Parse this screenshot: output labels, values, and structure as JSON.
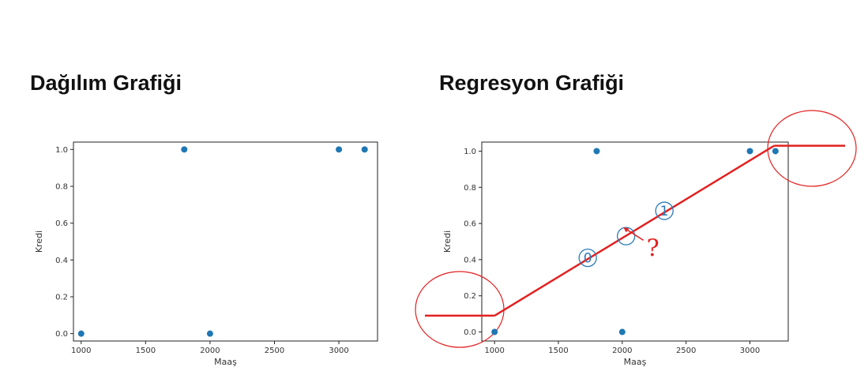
{
  "chart_data": [
    {
      "type": "scatter",
      "title": "Dağılım Grafiği",
      "xlabel": "Maaş",
      "ylabel": "Kredi",
      "xlim": [
        940,
        3300
      ],
      "ylim": [
        -0.04,
        1.04
      ],
      "xticks": [
        "1000",
        "1500",
        "2000",
        "2500",
        "3000"
      ],
      "yticks": [
        "0.0",
        "0.2",
        "0.4",
        "0.6",
        "0.8",
        "1.0"
      ],
      "point_color": "#1f77b4",
      "points": [
        {
          "x": 1000,
          "y": 0
        },
        {
          "x": 1800,
          "y": 1
        },
        {
          "x": 2000,
          "y": 0
        },
        {
          "x": 3000,
          "y": 1
        },
        {
          "x": 3200,
          "y": 1
        }
      ]
    },
    {
      "type": "scatter",
      "title": "Regresyon Grafiği",
      "xlabel": "Maaş",
      "ylabel": "Kredi",
      "xlim": [
        900,
        3300
      ],
      "ylim": [
        -0.05,
        1.05
      ],
      "xticks": [
        "1000",
        "1500",
        "2000",
        "2500",
        "3000"
      ],
      "yticks": [
        "0.0",
        "0.2",
        "0.4",
        "0.6",
        "0.8",
        "1.0"
      ],
      "point_color": "#1f77b4",
      "points": [
        {
          "x": 1000,
          "y": 0
        },
        {
          "x": 1800,
          "y": 1
        },
        {
          "x": 2000,
          "y": 0
        },
        {
          "x": 3000,
          "y": 1
        },
        {
          "x": 3200,
          "y": 1
        }
      ],
      "regression_line_color": "#e32020",
      "regression_line": [
        {
          "x": 1000,
          "y": 0.09
        },
        {
          "x": 3190,
          "y": 1.03
        }
      ],
      "annotations": [
        {
          "label": "0",
          "x": 1730,
          "y": 0.41
        },
        {
          "label": "",
          "x": 2030,
          "y": 0.53
        },
        {
          "label": "1",
          "x": 2330,
          "y": 0.67
        },
        {
          "label": "?",
          "x": 2240,
          "y": 0.42
        }
      ]
    }
  ]
}
